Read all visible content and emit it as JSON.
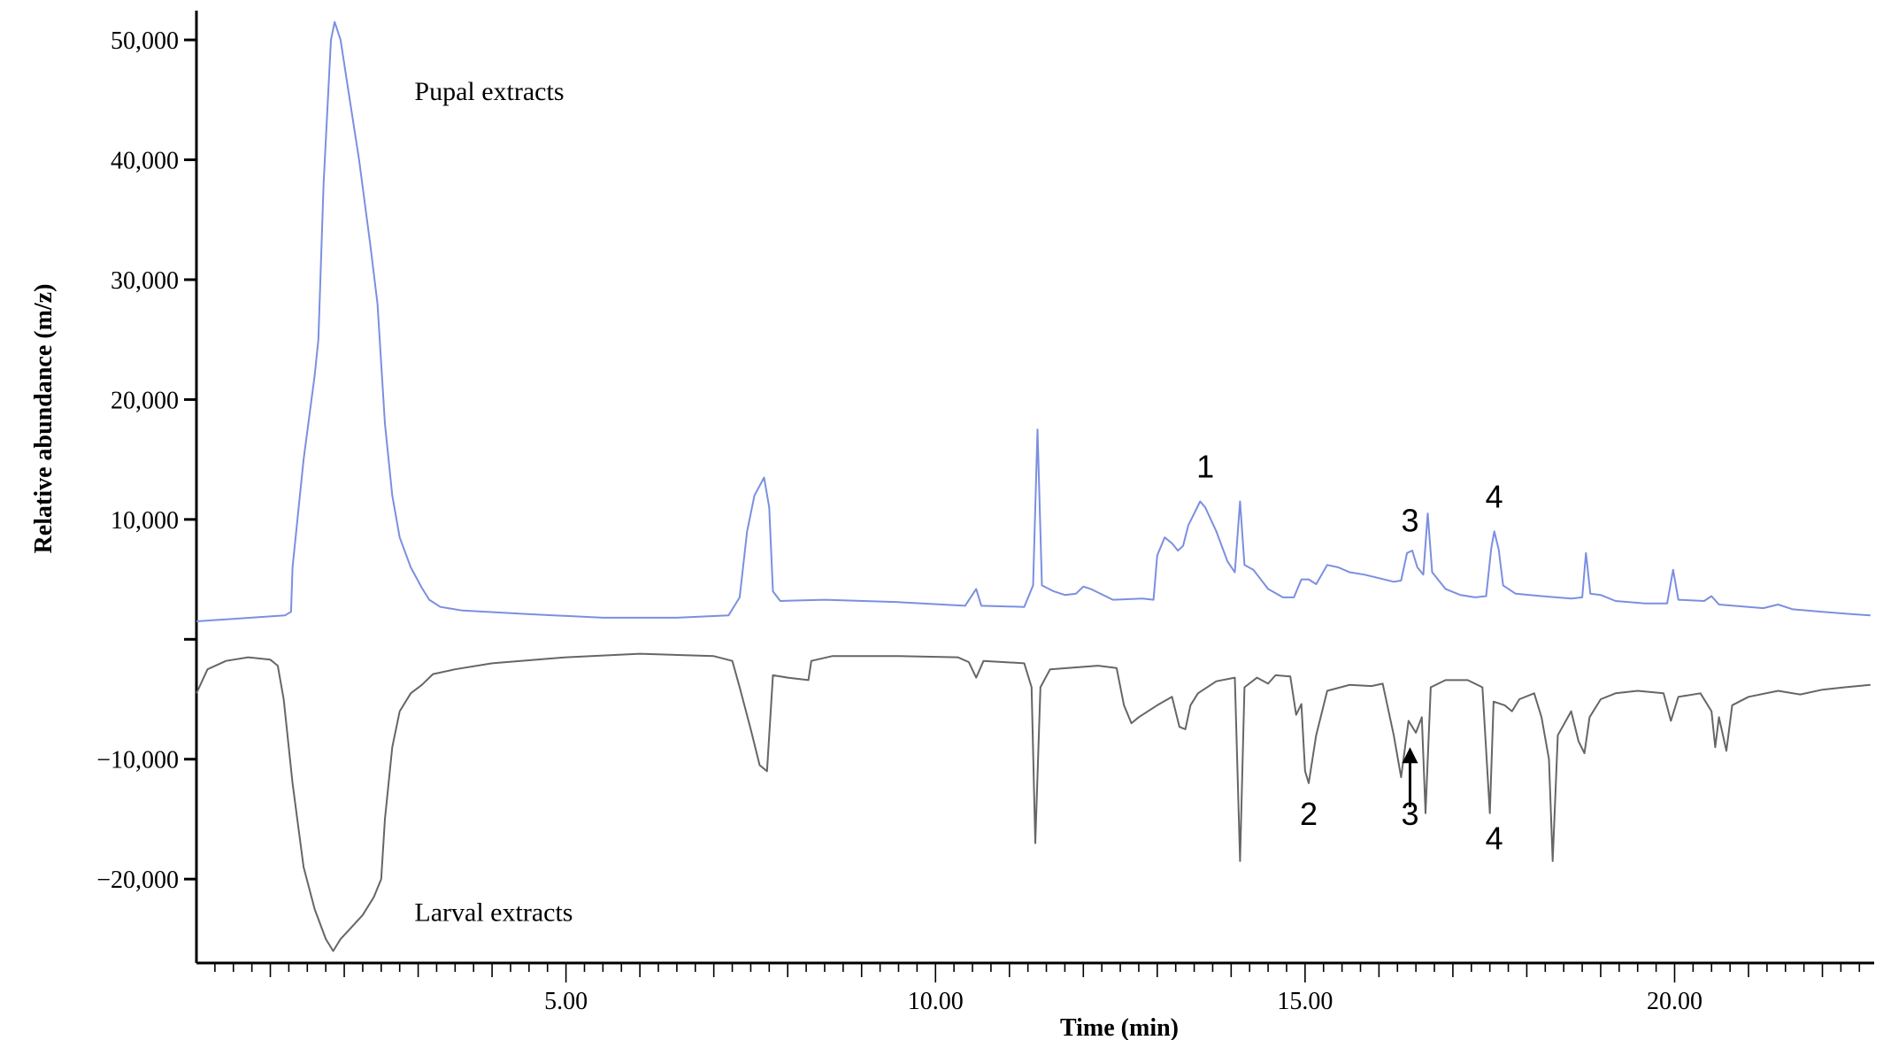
{
  "chart_data": {
    "type": "line",
    "title": "",
    "xlabel": "Time (min)",
    "ylabel": "Relative abundance (m/z)",
    "xlim": [
      0,
      22.7
    ],
    "ylim": [
      -27000,
      52000
    ],
    "x_ticks": [
      {
        "value": 5,
        "label": "5.00"
      },
      {
        "value": 10,
        "label": "10.00"
      },
      {
        "value": 15,
        "label": "15.00"
      },
      {
        "value": 20,
        "label": "20.00"
      }
    ],
    "y_ticks": [
      {
        "value": 50000,
        "label": "50,000"
      },
      {
        "value": 40000,
        "label": "40,000"
      },
      {
        "value": 30000,
        "label": "30,000"
      },
      {
        "value": 20000,
        "label": "20,000"
      },
      {
        "value": 10000,
        "label": "10,000"
      },
      {
        "value": 0,
        "label": ""
      },
      {
        "value": -10000,
        "label": "−10,000"
      },
      {
        "value": -20000,
        "label": "−20,000"
      }
    ],
    "grid": false,
    "series": [
      {
        "name": "Pupal extracts",
        "color": "#7b8fe0",
        "points": [
          [
            0,
            1500
          ],
          [
            1.2,
            2000
          ],
          [
            1.28,
            2300
          ],
          [
            1.3,
            6000
          ],
          [
            1.45,
            15000
          ],
          [
            1.6,
            22000
          ],
          [
            1.65,
            25000
          ],
          [
            1.72,
            38000
          ],
          [
            1.82,
            50000
          ],
          [
            1.87,
            51500
          ],
          [
            1.95,
            50000
          ],
          [
            2.05,
            46000
          ],
          [
            2.2,
            40000
          ],
          [
            2.35,
            33000
          ],
          [
            2.45,
            28000
          ],
          [
            2.55,
            18000
          ],
          [
            2.65,
            12000
          ],
          [
            2.75,
            8500
          ],
          [
            2.9,
            6000
          ],
          [
            3.05,
            4300
          ],
          [
            3.15,
            3300
          ],
          [
            3.3,
            2700
          ],
          [
            3.6,
            2400
          ],
          [
            4.5,
            2100
          ],
          [
            5.5,
            1800
          ],
          [
            6.5,
            1800
          ],
          [
            7.2,
            2000
          ],
          [
            7.35,
            3500
          ],
          [
            7.45,
            9000
          ],
          [
            7.55,
            12000
          ],
          [
            7.68,
            13500
          ],
          [
            7.75,
            11000
          ],
          [
            7.8,
            4000
          ],
          [
            7.9,
            3200
          ],
          [
            8.5,
            3300
          ],
          [
            9.5,
            3100
          ],
          [
            10.4,
            2800
          ],
          [
            10.55,
            4200
          ],
          [
            10.62,
            2800
          ],
          [
            11.2,
            2700
          ],
          [
            11.32,
            4500
          ],
          [
            11.38,
            17500
          ],
          [
            11.44,
            4500
          ],
          [
            11.6,
            4000
          ],
          [
            11.75,
            3700
          ],
          [
            11.9,
            3800
          ],
          [
            12.0,
            4400
          ],
          [
            12.1,
            4200
          ],
          [
            12.4,
            3300
          ],
          [
            12.8,
            3400
          ],
          [
            12.95,
            3300
          ],
          [
            13.0,
            7000
          ],
          [
            13.1,
            8500
          ],
          [
            13.2,
            8000
          ],
          [
            13.28,
            7400
          ],
          [
            13.35,
            7800
          ],
          [
            13.42,
            9500
          ],
          [
            13.5,
            10500
          ],
          [
            13.58,
            11500
          ],
          [
            13.65,
            11000
          ],
          [
            13.8,
            9000
          ],
          [
            13.95,
            6500
          ],
          [
            14.05,
            5600
          ],
          [
            14.12,
            11500
          ],
          [
            14.18,
            6200
          ],
          [
            14.3,
            5800
          ],
          [
            14.5,
            4200
          ],
          [
            14.7,
            3500
          ],
          [
            14.85,
            3500
          ],
          [
            14.95,
            5000
          ],
          [
            15.05,
            5000
          ],
          [
            15.15,
            4600
          ],
          [
            15.3,
            6200
          ],
          [
            15.45,
            6000
          ],
          [
            15.6,
            5600
          ],
          [
            15.8,
            5400
          ],
          [
            16.0,
            5100
          ],
          [
            16.2,
            4800
          ],
          [
            16.3,
            4900
          ],
          [
            16.38,
            7200
          ],
          [
            16.45,
            7400
          ],
          [
            16.52,
            6000
          ],
          [
            16.6,
            5400
          ],
          [
            16.66,
            10500
          ],
          [
            16.72,
            5600
          ],
          [
            16.9,
            4200
          ],
          [
            17.1,
            3700
          ],
          [
            17.3,
            3500
          ],
          [
            17.45,
            3600
          ],
          [
            17.52,
            7600
          ],
          [
            17.56,
            9000
          ],
          [
            17.62,
            7500
          ],
          [
            17.68,
            4500
          ],
          [
            17.85,
            3800
          ],
          [
            18.2,
            3600
          ],
          [
            18.6,
            3400
          ],
          [
            18.75,
            3500
          ],
          [
            18.8,
            7200
          ],
          [
            18.86,
            3800
          ],
          [
            19.0,
            3700
          ],
          [
            19.2,
            3200
          ],
          [
            19.6,
            3000
          ],
          [
            19.9,
            3000
          ],
          [
            19.98,
            5800
          ],
          [
            20.05,
            3300
          ],
          [
            20.4,
            3200
          ],
          [
            20.5,
            3600
          ],
          [
            20.6,
            2900
          ],
          [
            20.8,
            2800
          ],
          [
            21.2,
            2600
          ],
          [
            21.4,
            2900
          ],
          [
            21.6,
            2500
          ],
          [
            22.0,
            2300
          ],
          [
            22.4,
            2100
          ],
          [
            22.65,
            2000
          ]
        ]
      },
      {
        "name": "Larval extracts",
        "color": "#666666",
        "points": [
          [
            0,
            -4500
          ],
          [
            0.15,
            -2500
          ],
          [
            0.4,
            -1800
          ],
          [
            0.7,
            -1500
          ],
          [
            1.0,
            -1700
          ],
          [
            1.1,
            -2200
          ],
          [
            1.18,
            -5000
          ],
          [
            1.3,
            -12000
          ],
          [
            1.45,
            -19000
          ],
          [
            1.6,
            -22500
          ],
          [
            1.75,
            -25000
          ],
          [
            1.85,
            -26000
          ],
          [
            1.95,
            -25000
          ],
          [
            2.1,
            -24000
          ],
          [
            2.25,
            -23000
          ],
          [
            2.4,
            -21500
          ],
          [
            2.5,
            -20000
          ],
          [
            2.55,
            -15000
          ],
          [
            2.65,
            -9000
          ],
          [
            2.75,
            -6000
          ],
          [
            2.9,
            -4500
          ],
          [
            3.05,
            -3800
          ],
          [
            3.2,
            -2900
          ],
          [
            3.5,
            -2500
          ],
          [
            4.0,
            -2000
          ],
          [
            5.0,
            -1500
          ],
          [
            6.0,
            -1200
          ],
          [
            7.0,
            -1400
          ],
          [
            7.25,
            -1800
          ],
          [
            7.35,
            -4000
          ],
          [
            7.5,
            -7500
          ],
          [
            7.62,
            -10500
          ],
          [
            7.72,
            -11000
          ],
          [
            7.8,
            -3000
          ],
          [
            8.0,
            -3200
          ],
          [
            8.28,
            -3400
          ],
          [
            8.32,
            -1800
          ],
          [
            8.6,
            -1400
          ],
          [
            9.5,
            -1400
          ],
          [
            10.3,
            -1500
          ],
          [
            10.45,
            -1900
          ],
          [
            10.55,
            -3200
          ],
          [
            10.65,
            -1800
          ],
          [
            11.2,
            -2000
          ],
          [
            11.3,
            -4000
          ],
          [
            11.35,
            -17000
          ],
          [
            11.42,
            -4000
          ],
          [
            11.55,
            -2500
          ],
          [
            12.2,
            -2200
          ],
          [
            12.45,
            -2400
          ],
          [
            12.55,
            -5500
          ],
          [
            12.65,
            -7000
          ],
          [
            12.75,
            -6500
          ],
          [
            13.0,
            -5500
          ],
          [
            13.2,
            -4800
          ],
          [
            13.3,
            -7300
          ],
          [
            13.38,
            -7500
          ],
          [
            13.45,
            -5500
          ],
          [
            13.55,
            -4500
          ],
          [
            13.8,
            -3500
          ],
          [
            14.05,
            -3200
          ],
          [
            14.12,
            -18500
          ],
          [
            14.18,
            -4000
          ],
          [
            14.35,
            -3200
          ],
          [
            14.5,
            -3700
          ],
          [
            14.6,
            -3000
          ],
          [
            14.8,
            -3100
          ],
          [
            14.88,
            -6300
          ],
          [
            14.95,
            -5400
          ],
          [
            15.0,
            -11000
          ],
          [
            15.05,
            -12000
          ],
          [
            15.15,
            -8000
          ],
          [
            15.3,
            -4300
          ],
          [
            15.6,
            -3800
          ],
          [
            15.9,
            -3900
          ],
          [
            16.05,
            -3700
          ],
          [
            16.2,
            -8000
          ],
          [
            16.3,
            -11500
          ],
          [
            16.4,
            -6800
          ],
          [
            16.5,
            -7800
          ],
          [
            16.58,
            -6500
          ],
          [
            16.63,
            -14500
          ],
          [
            16.7,
            -4000
          ],
          [
            16.9,
            -3400
          ],
          [
            17.2,
            -3400
          ],
          [
            17.4,
            -4000
          ],
          [
            17.5,
            -14500
          ],
          [
            17.55,
            -5200
          ],
          [
            17.7,
            -5500
          ],
          [
            17.8,
            -6000
          ],
          [
            17.9,
            -5000
          ],
          [
            18.1,
            -4500
          ],
          [
            18.2,
            -6500
          ],
          [
            18.3,
            -10000
          ],
          [
            18.35,
            -18500
          ],
          [
            18.42,
            -8000
          ],
          [
            18.6,
            -6000
          ],
          [
            18.7,
            -8500
          ],
          [
            18.78,
            -9500
          ],
          [
            18.85,
            -6500
          ],
          [
            19.0,
            -5000
          ],
          [
            19.2,
            -4500
          ],
          [
            19.5,
            -4300
          ],
          [
            19.85,
            -4500
          ],
          [
            19.95,
            -6800
          ],
          [
            20.05,
            -4800
          ],
          [
            20.35,
            -4500
          ],
          [
            20.5,
            -6000
          ],
          [
            20.55,
            -9000
          ],
          [
            20.6,
            -6500
          ],
          [
            20.7,
            -9300
          ],
          [
            20.78,
            -5500
          ],
          [
            21.0,
            -4800
          ],
          [
            21.4,
            -4300
          ],
          [
            21.7,
            -4600
          ],
          [
            22.0,
            -4200
          ],
          [
            22.3,
            -4000
          ],
          [
            22.65,
            -3800
          ]
        ]
      }
    ],
    "annotations": [
      {
        "text": "Pupal extracts",
        "x": 2.95,
        "y": 45000,
        "kind": "series-label"
      },
      {
        "text": "Larval extracts",
        "x": 2.95,
        "y": -23500,
        "kind": "series-label"
      },
      {
        "text": "1",
        "x": 13.65,
        "y": 13500,
        "kind": "peak"
      },
      {
        "text": "3",
        "x": 16.42,
        "y": 9000,
        "kind": "peak"
      },
      {
        "text": "4",
        "x": 17.56,
        "y": 11000,
        "kind": "peak"
      },
      {
        "text": "2",
        "x": 15.05,
        "y": -15500,
        "kind": "peak"
      },
      {
        "text": "3",
        "x": 16.42,
        "y": -15500,
        "kind": "peak"
      },
      {
        "text": "4",
        "x": 17.56,
        "y": -17500,
        "kind": "peak"
      }
    ],
    "arrows": [
      {
        "x": 16.42,
        "y_from": -14000,
        "y_to": -9000
      }
    ]
  }
}
